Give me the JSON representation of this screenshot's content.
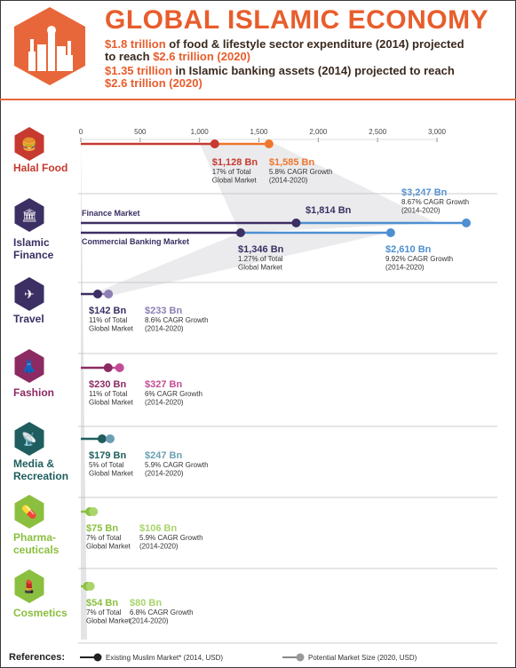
{
  "header": {
    "title": "GLOBAL ISLAMIC ECONOMY",
    "line1_prefix": "$1.8 trillion",
    "line1_rest": " of food & lifestyle sector expenditure (2014) projected",
    "line2_prefix": "to reach ",
    "line2_value": "$2.6 trillion (2020)",
    "line3_prefix": "$1.35 trillion",
    "line3_rest": " in Islamic banking assets (2014) projected to reach",
    "line4_value": "$2.6 trillion (2020)"
  },
  "colors": {
    "accent": "#e85d2c",
    "halal_food": "#c63a2f",
    "islamic_finance": "#3b2f63",
    "finance_blue": "#4d8fd1",
    "travel": "#3b2f63",
    "fashion": "#8c2a63",
    "media": "#1f5d5e",
    "pharma": "#8bbf3f",
    "cosmetics": "#8bbf3f"
  },
  "references": {
    "label": "References:",
    "existing": "Existing Muslim Market* (2014, USD)",
    "potential": "Potential Market Size (2020, USD)"
  },
  "chart_data": {
    "type": "dot-range",
    "xlim": [
      0,
      3000
    ],
    "x_ticks": [
      "0",
      "500",
      "1,000",
      "1,500",
      "2,000",
      "2,500",
      "3,000"
    ],
    "sectors": [
      {
        "name": "Halal Food",
        "icon": "halal-food-icon",
        "rows": [
          {
            "existing": 1128,
            "potential": 1585,
            "existing_label": "$1,128 Bn",
            "existing_note": "17% of Total Global Market",
            "potential_label": "$1,585 Bn",
            "potential_note": "5.8% CAGR Growth (2014-2020)"
          }
        ]
      },
      {
        "name": "Islamic Finance",
        "icon": "islamic-finance-icon",
        "rows": [
          {
            "series": "Finance Market",
            "existing": 1814,
            "potential": 3247,
            "existing_label": "$1,814 Bn",
            "existing_note": "",
            "potential_label": "$3,247 Bn",
            "potential_note": "8.67% CAGR Growth (2014-2020)"
          },
          {
            "series": "Commercial Banking Market",
            "existing": 1346,
            "potential": 2610,
            "existing_label": "$1,346 Bn",
            "existing_note": "1.27% of Total Global Market",
            "potential_label": "$2,610 Bn",
            "potential_note": "9.92% CAGR Growth (2014-2020)"
          }
        ]
      },
      {
        "name": "Travel",
        "icon": "travel-icon",
        "rows": [
          {
            "existing": 142,
            "potential": 233,
            "existing_label": "$142 Bn",
            "existing_note": "11% of Total Global Market",
            "potential_label": "$233 Bn",
            "potential_note": "8.6% CAGR Growth (2014-2020)"
          }
        ]
      },
      {
        "name": "Fashion",
        "icon": "fashion-icon",
        "rows": [
          {
            "existing": 230,
            "potential": 327,
            "existing_label": "$230 Bn",
            "existing_note": "11% of Total Global Market",
            "potential_label": "$327 Bn",
            "potential_note": "6% CAGR Growth (2014-2020)"
          }
        ]
      },
      {
        "name": "Media & Recreation",
        "icon": "media-recreation-icon",
        "rows": [
          {
            "existing": 179,
            "potential": 247,
            "existing_label": "$179 Bn",
            "existing_note": "5% of Total Global Market",
            "potential_label": "$247 Bn",
            "potential_note": "5.9% CAGR Growth (2014-2020)"
          }
        ]
      },
      {
        "name": "Pharmaceuticals",
        "icon": "pharmaceuticals-icon",
        "rows": [
          {
            "existing": 75,
            "potential": 106,
            "existing_label": "$75 Bn",
            "existing_note": "7% of Total Global Market",
            "potential_label": "$106 Bn",
            "potential_note": "5.9% CAGR Growth (2014-2020)"
          }
        ]
      },
      {
        "name": "Cosmetics",
        "icon": "cosmetics-icon",
        "rows": [
          {
            "existing": 54,
            "potential": 80,
            "existing_label": "$54 Bn",
            "existing_note": "7% of Total Global Market",
            "potential_label": "$80 Bn",
            "potential_note": "6.8% CAGR Growth (2014-2020)"
          }
        ]
      }
    ]
  }
}
